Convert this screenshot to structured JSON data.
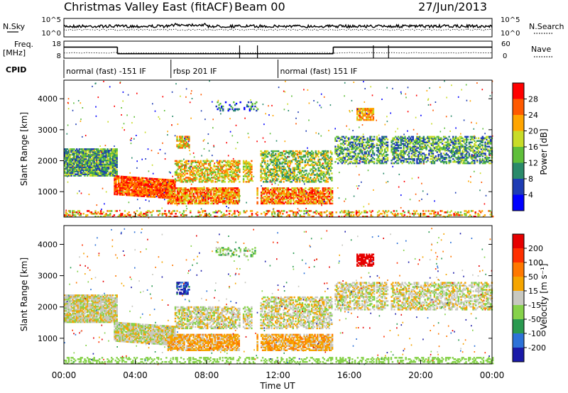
{
  "header": {
    "title": "Christmas Valley East (fitACF)",
    "beam": "Beam 00",
    "date": "27/Jun/2013"
  },
  "chart_data": [
    {
      "type": "line",
      "name": "noise",
      "left_label": "N.Sky",
      "right_label": "N.Search",
      "yticks_left": [
        "10^5",
        "10^0"
      ],
      "yticks_right": [
        "10^5",
        "10^0"
      ],
      "series": [
        {
          "name": "N.Sky",
          "style": "solid"
        },
        {
          "name": "N.Search",
          "style": "dotted"
        }
      ]
    },
    {
      "type": "line",
      "name": "frequency-nave",
      "left_label_1": "Freq.",
      "left_label_2": "[MHz]",
      "right_label": "Nave",
      "yticks_left": [
        "18",
        "8"
      ],
      "yticks_right": [
        "60",
        "0"
      ],
      "freq_segments": [
        {
          "x0": 0.0,
          "x1": 3.0,
          "y": 14.5
        },
        {
          "x0": 3.0,
          "x1": 15.1,
          "y": 10.6
        },
        {
          "x0": 15.1,
          "x1": 24.0,
          "y": 14.5
        }
      ],
      "freq_gaps": [
        9.85,
        10.85,
        17.35,
        18.2
      ]
    },
    {
      "type": "table",
      "name": "cpid",
      "label": "CPID",
      "entries": [
        {
          "start": 0.0,
          "text": "normal (fast) -151 IF"
        },
        {
          "start": 6.0,
          "text": "rbsp 201 IF"
        },
        {
          "start": 12.0,
          "text": "normal (fast) 151 IF"
        }
      ]
    },
    {
      "type": "heatmap",
      "name": "power",
      "ylabel": "Slant Range [km]",
      "ylim": [
        180,
        4600
      ],
      "yticks": [
        1000,
        2000,
        3000,
        4000
      ],
      "colorbar_label": "Power [dB]",
      "colorbar_ticks": [
        "28",
        "24",
        "20",
        "16",
        "12",
        "8",
        "4"
      ],
      "colors": [
        "#0000ff",
        "#1e3cb4",
        "#2a8a6a",
        "#5fbf3a",
        "#c8dc28",
        "#ffa500",
        "#ff5a00",
        "#ff0000"
      ]
    },
    {
      "type": "heatmap",
      "name": "velocity",
      "ylabel": "Slant Range [km]",
      "ylim": [
        180,
        4600
      ],
      "yticks": [
        1000,
        2000,
        3000,
        4000
      ],
      "colorbar_label": "Velocity [m s⁻¹]",
      "colorbar_ticks": [
        "200",
        "100",
        "50",
        "15",
        "-15",
        "-50",
        "-100",
        "-200"
      ],
      "colors": [
        "#1a1aa8",
        "#2d72d8",
        "#2a9a50",
        "#86d24a",
        "#c8c8c0",
        "#f5a500",
        "#ff7800",
        "#ff3000",
        "#e60000"
      ]
    }
  ],
  "xaxis": {
    "label": "Time UT",
    "xlim": [
      0,
      24
    ],
    "ticks": [
      "00:00",
      "04:00",
      "08:00",
      "12:00",
      "16:00",
      "20:00",
      "00:00"
    ]
  }
}
